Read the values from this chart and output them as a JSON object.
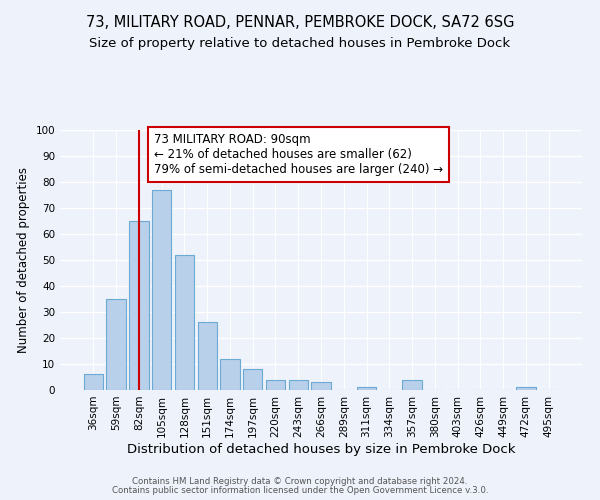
{
  "title": "73, MILITARY ROAD, PENNAR, PEMBROKE DOCK, SA72 6SG",
  "subtitle": "Size of property relative to detached houses in Pembroke Dock",
  "xlabel": "Distribution of detached houses by size in Pembroke Dock",
  "ylabel": "Number of detached properties",
  "footer1": "Contains HM Land Registry data © Crown copyright and database right 2024.",
  "footer2": "Contains public sector information licensed under the Open Government Licence v.3.0.",
  "bar_labels": [
    "36sqm",
    "59sqm",
    "82sqm",
    "105sqm",
    "128sqm",
    "151sqm",
    "174sqm",
    "197sqm",
    "220sqm",
    "243sqm",
    "266sqm",
    "289sqm",
    "311sqm",
    "334sqm",
    "357sqm",
    "380sqm",
    "403sqm",
    "426sqm",
    "449sqm",
    "472sqm",
    "495sqm"
  ],
  "bar_values": [
    6,
    35,
    65,
    77,
    52,
    26,
    12,
    8,
    4,
    4,
    3,
    0,
    1,
    0,
    4,
    0,
    0,
    0,
    0,
    1,
    0
  ],
  "bar_color": "#b8d0ea",
  "bar_edge_color": "#6aaad4",
  "annotation_text_line1": "73 MILITARY ROAD: 90sqm",
  "annotation_text_line2": "← 21% of detached houses are smaller (62)",
  "annotation_text_line3": "79% of semi-detached houses are larger (240) →",
  "ref_line_x": 2.0,
  "ref_line_color": "#cc0000",
  "ylim": [
    0,
    100
  ],
  "yticks": [
    0,
    10,
    20,
    30,
    40,
    50,
    60,
    70,
    80,
    90,
    100
  ],
  "background_color": "#eef2fb",
  "title_fontsize": 10.5,
  "subtitle_fontsize": 9.5,
  "xlabel_fontsize": 9.5,
  "ylabel_fontsize": 8.5,
  "tick_fontsize": 7.5,
  "annotation_fontsize": 8.5,
  "footer_fontsize": 6.2
}
